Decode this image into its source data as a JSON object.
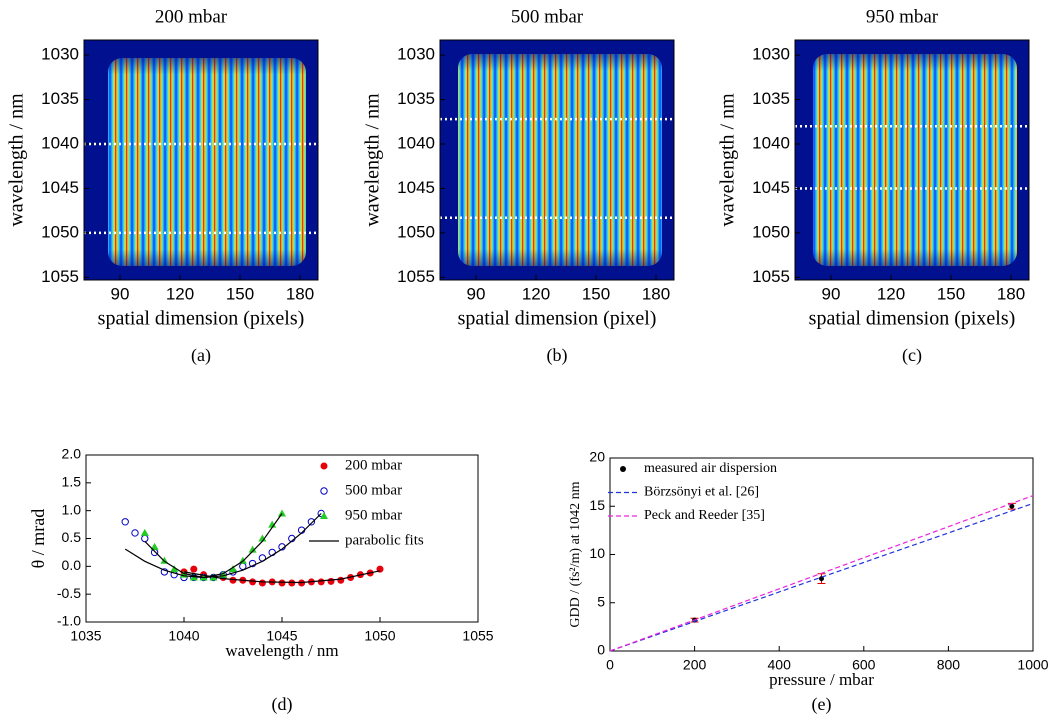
{
  "chart_data": [
    {
      "type": "image",
      "title": "200 mbar",
      "xlabel": "spatial dimension (pixels)",
      "ylabel": "wavelength / nm",
      "caption": "(a)",
      "xlim": [
        72,
        189
      ],
      "xticks": [
        90,
        120,
        150,
        180
      ],
      "ylim": [
        1055.3,
        1028.3
      ],
      "yticks": [
        1030,
        1035,
        1040,
        1045,
        1050,
        1055
      ],
      "hlines": [
        1040,
        1050
      ]
    },
    {
      "type": "image",
      "title": "500 mbar",
      "xlabel": "spatial dimension (pixel)",
      "ylabel": "wavelength / nm",
      "caption": "(b)",
      "xlim": [
        72,
        189
      ],
      "xticks": [
        90,
        120,
        150,
        180
      ],
      "ylim": [
        1055.3,
        1028.3
      ],
      "yticks": [
        1030,
        1035,
        1040,
        1045,
        1050,
        1055
      ],
      "hlines": [
        1037.2,
        1048.3
      ]
    },
    {
      "type": "image",
      "title": "950 mbar",
      "xlabel": "spatial dimension (pixels)",
      "ylabel": "wavelength / nm",
      "caption": "(c)",
      "xlim": [
        72,
        189
      ],
      "xticks": [
        90,
        120,
        150,
        180
      ],
      "ylim": [
        1055.3,
        1028.3
      ],
      "yticks": [
        1030,
        1035,
        1040,
        1045,
        1050,
        1055
      ],
      "hlines": [
        1038,
        1045
      ]
    },
    {
      "type": "scatter",
      "xlabel": "wavelength / nm",
      "ylabel": "θ / mrad",
      "caption": "(d)",
      "xlim": [
        1035,
        1055
      ],
      "xticks": [
        1035,
        1040,
        1045,
        1050,
        1055
      ],
      "ylim": [
        -1,
        2
      ],
      "yticks": [
        {
          "value": -1,
          "label": "-1.0"
        },
        -0.5,
        {
          "value": 0,
          "label": "0.0"
        },
        0.5,
        {
          "value": 1,
          "label": "1.0"
        },
        1.5,
        {
          "value": 2,
          "label": "2.0"
        }
      ],
      "series": [
        {
          "name": "200 mbar",
          "color": "#e8000b",
          "marker": "circle",
          "x": [
            1040,
            1040.5,
            1041,
            1041.5,
            1042,
            1042.5,
            1043,
            1043.5,
            1044,
            1044.5,
            1045,
            1045.5,
            1046,
            1046.5,
            1047,
            1047.5,
            1048,
            1048.5,
            1049,
            1049.5,
            1050
          ],
          "values": [
            -0.1,
            -0.05,
            -0.15,
            -0.2,
            -0.2,
            -0.25,
            -0.25,
            -0.28,
            -0.3,
            -0.28,
            -0.3,
            -0.3,
            -0.3,
            -0.28,
            -0.28,
            -0.27,
            -0.25,
            -0.2,
            -0.15,
            -0.12,
            -0.05
          ]
        },
        {
          "name": "500 mbar",
          "color": "#0000cc",
          "marker": "open-circle",
          "x": [
            1037,
            1037.5,
            1038,
            1038.5,
            1039,
            1039.5,
            1040,
            1040.5,
            1041,
            1041.5,
            1042,
            1042.5,
            1043,
            1043.5,
            1044,
            1044.5,
            1045,
            1045.5,
            1046,
            1046.5,
            1047
          ],
          "values": [
            0.8,
            0.6,
            0.5,
            0.25,
            -0.1,
            -0.15,
            -0.2,
            -0.2,
            -0.2,
            -0.2,
            -0.15,
            -0.1,
            0,
            0.05,
            0.15,
            0.25,
            0.35,
            0.5,
            0.65,
            0.8,
            0.95
          ]
        },
        {
          "name": "950 mbar",
          "color": "#22cc22",
          "marker": "triangle",
          "x": [
            1038,
            1038.5,
            1039,
            1039.5,
            1040,
            1040.5,
            1041,
            1041.5,
            1042,
            1042.5,
            1043,
            1043.5,
            1044,
            1044.5,
            1045
          ],
          "values": [
            0.6,
            0.35,
            0.1,
            -0.05,
            -0.15,
            -0.2,
            -0.2,
            -0.2,
            -0.15,
            -0.05,
            0.1,
            0.3,
            0.5,
            0.75,
            0.95
          ]
        },
        {
          "name": "parabolic fits",
          "color": "#000000",
          "marker": "line",
          "x": [
            1038,
            1039,
            1040,
            1041,
            1042,
            1043,
            1044,
            1045,
            null,
            1037,
            1038,
            1039,
            1040,
            1041,
            1042,
            1043,
            1044,
            1045,
            1046,
            1047,
            null,
            1040,
            1042,
            1044,
            1046,
            1048,
            1050
          ],
          "values": [
            0.45,
            0.09,
            -0.13,
            -0.2,
            -0.13,
            0.09,
            0.45,
            0.95,
            null,
            0.31,
            0.09,
            -0.07,
            -0.17,
            -0.2,
            -0.17,
            -0.07,
            0.09,
            0.31,
            0.6,
            0.95,
            null,
            -0.1,
            -0.22,
            -0.28,
            -0.29,
            -0.23,
            -0.08
          ]
        }
      ]
    },
    {
      "type": "scatter",
      "xlabel": "pressure / mbar",
      "ylabel": "GDD / (fs²/m) at 1042 nm",
      "caption": "(e)",
      "xlim": [
        0,
        1000
      ],
      "xticks": [
        0,
        200,
        400,
        600,
        800,
        1000
      ],
      "ylim": [
        0,
        20
      ],
      "yticks": [
        0,
        5,
        10,
        15,
        20
      ],
      "series": [
        {
          "name": "measured air dispersion",
          "color": "#000000",
          "marker": "circle",
          "error_color": "#dd0000",
          "x": [
            200,
            500,
            950
          ],
          "values": [
            3.2,
            7.5,
            15.0
          ],
          "errors": [
            0.2,
            0.5,
            0.3
          ]
        },
        {
          "name": "Börzsönyi et al.  [26]",
          "color": "#2233dd",
          "marker": "dashed-line",
          "x": [
            0,
            1000
          ],
          "values": [
            0,
            15.3
          ]
        },
        {
          "name": "Peck and Reeder [35]",
          "color": "#ee22dd",
          "marker": "dashed-line",
          "x": [
            0,
            1000
          ],
          "values": [
            0,
            16.1
          ]
        }
      ]
    }
  ]
}
